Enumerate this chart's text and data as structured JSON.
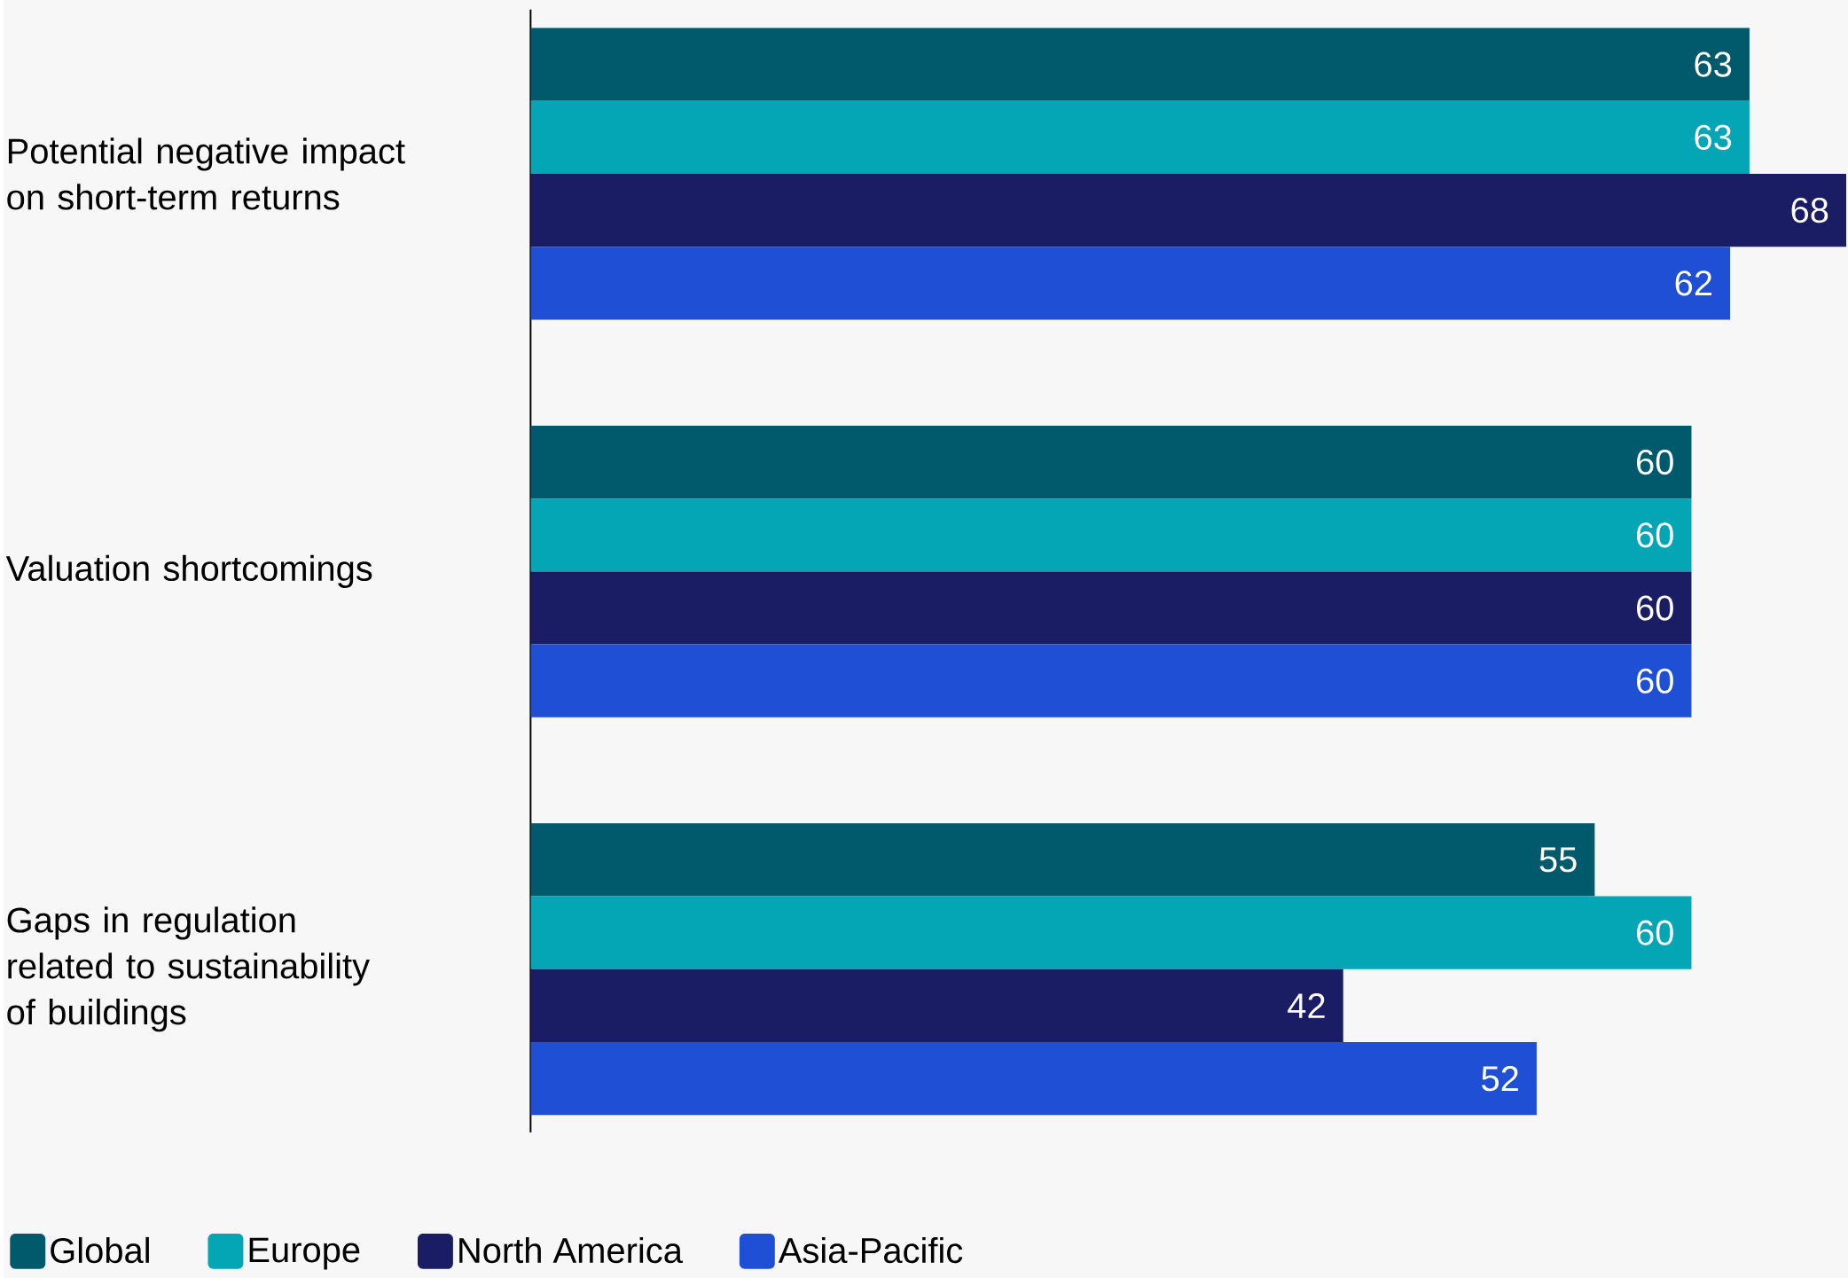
{
  "chart_data": {
    "type": "bar",
    "orientation": "horizontal",
    "categories": [
      "Potential negative impact on short-term returns",
      "Valuation shortcomings",
      "Gaps in regulation related to sustainability of buildings"
    ],
    "series": [
      {
        "name": "Global",
        "color": "#005a6b",
        "values": [
          63,
          60,
          55
        ]
      },
      {
        "name": "Europe",
        "color": "#04a5b5",
        "values": [
          63,
          60,
          60
        ]
      },
      {
        "name": "North America",
        "color": "#1a1d63",
        "values": [
          68,
          60,
          42
        ]
      },
      {
        "name": "Asia-Pacific",
        "color": "#1f4fd4",
        "values": [
          62,
          60,
          52
        ]
      }
    ],
    "data_labels": true,
    "legend": "bottom left",
    "tick_labels": "y"
  }
}
